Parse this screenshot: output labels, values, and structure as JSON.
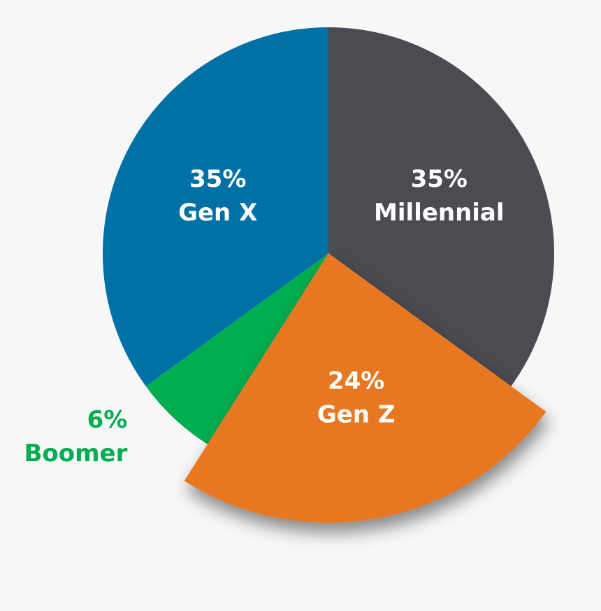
{
  "chart_data": {
    "type": "pie",
    "categories": [
      "Millennial",
      "Gen Z",
      "Boomer",
      "Gen X"
    ],
    "values": [
      35,
      24,
      6,
      35
    ],
    "value_labels": [
      "35%",
      "24%",
      "6%",
      "35%"
    ],
    "colors": [
      "#4a4c51",
      "#e87722",
      "#00ad50",
      "#0071a6"
    ],
    "exploded": [
      false,
      true,
      false,
      false
    ]
  }
}
